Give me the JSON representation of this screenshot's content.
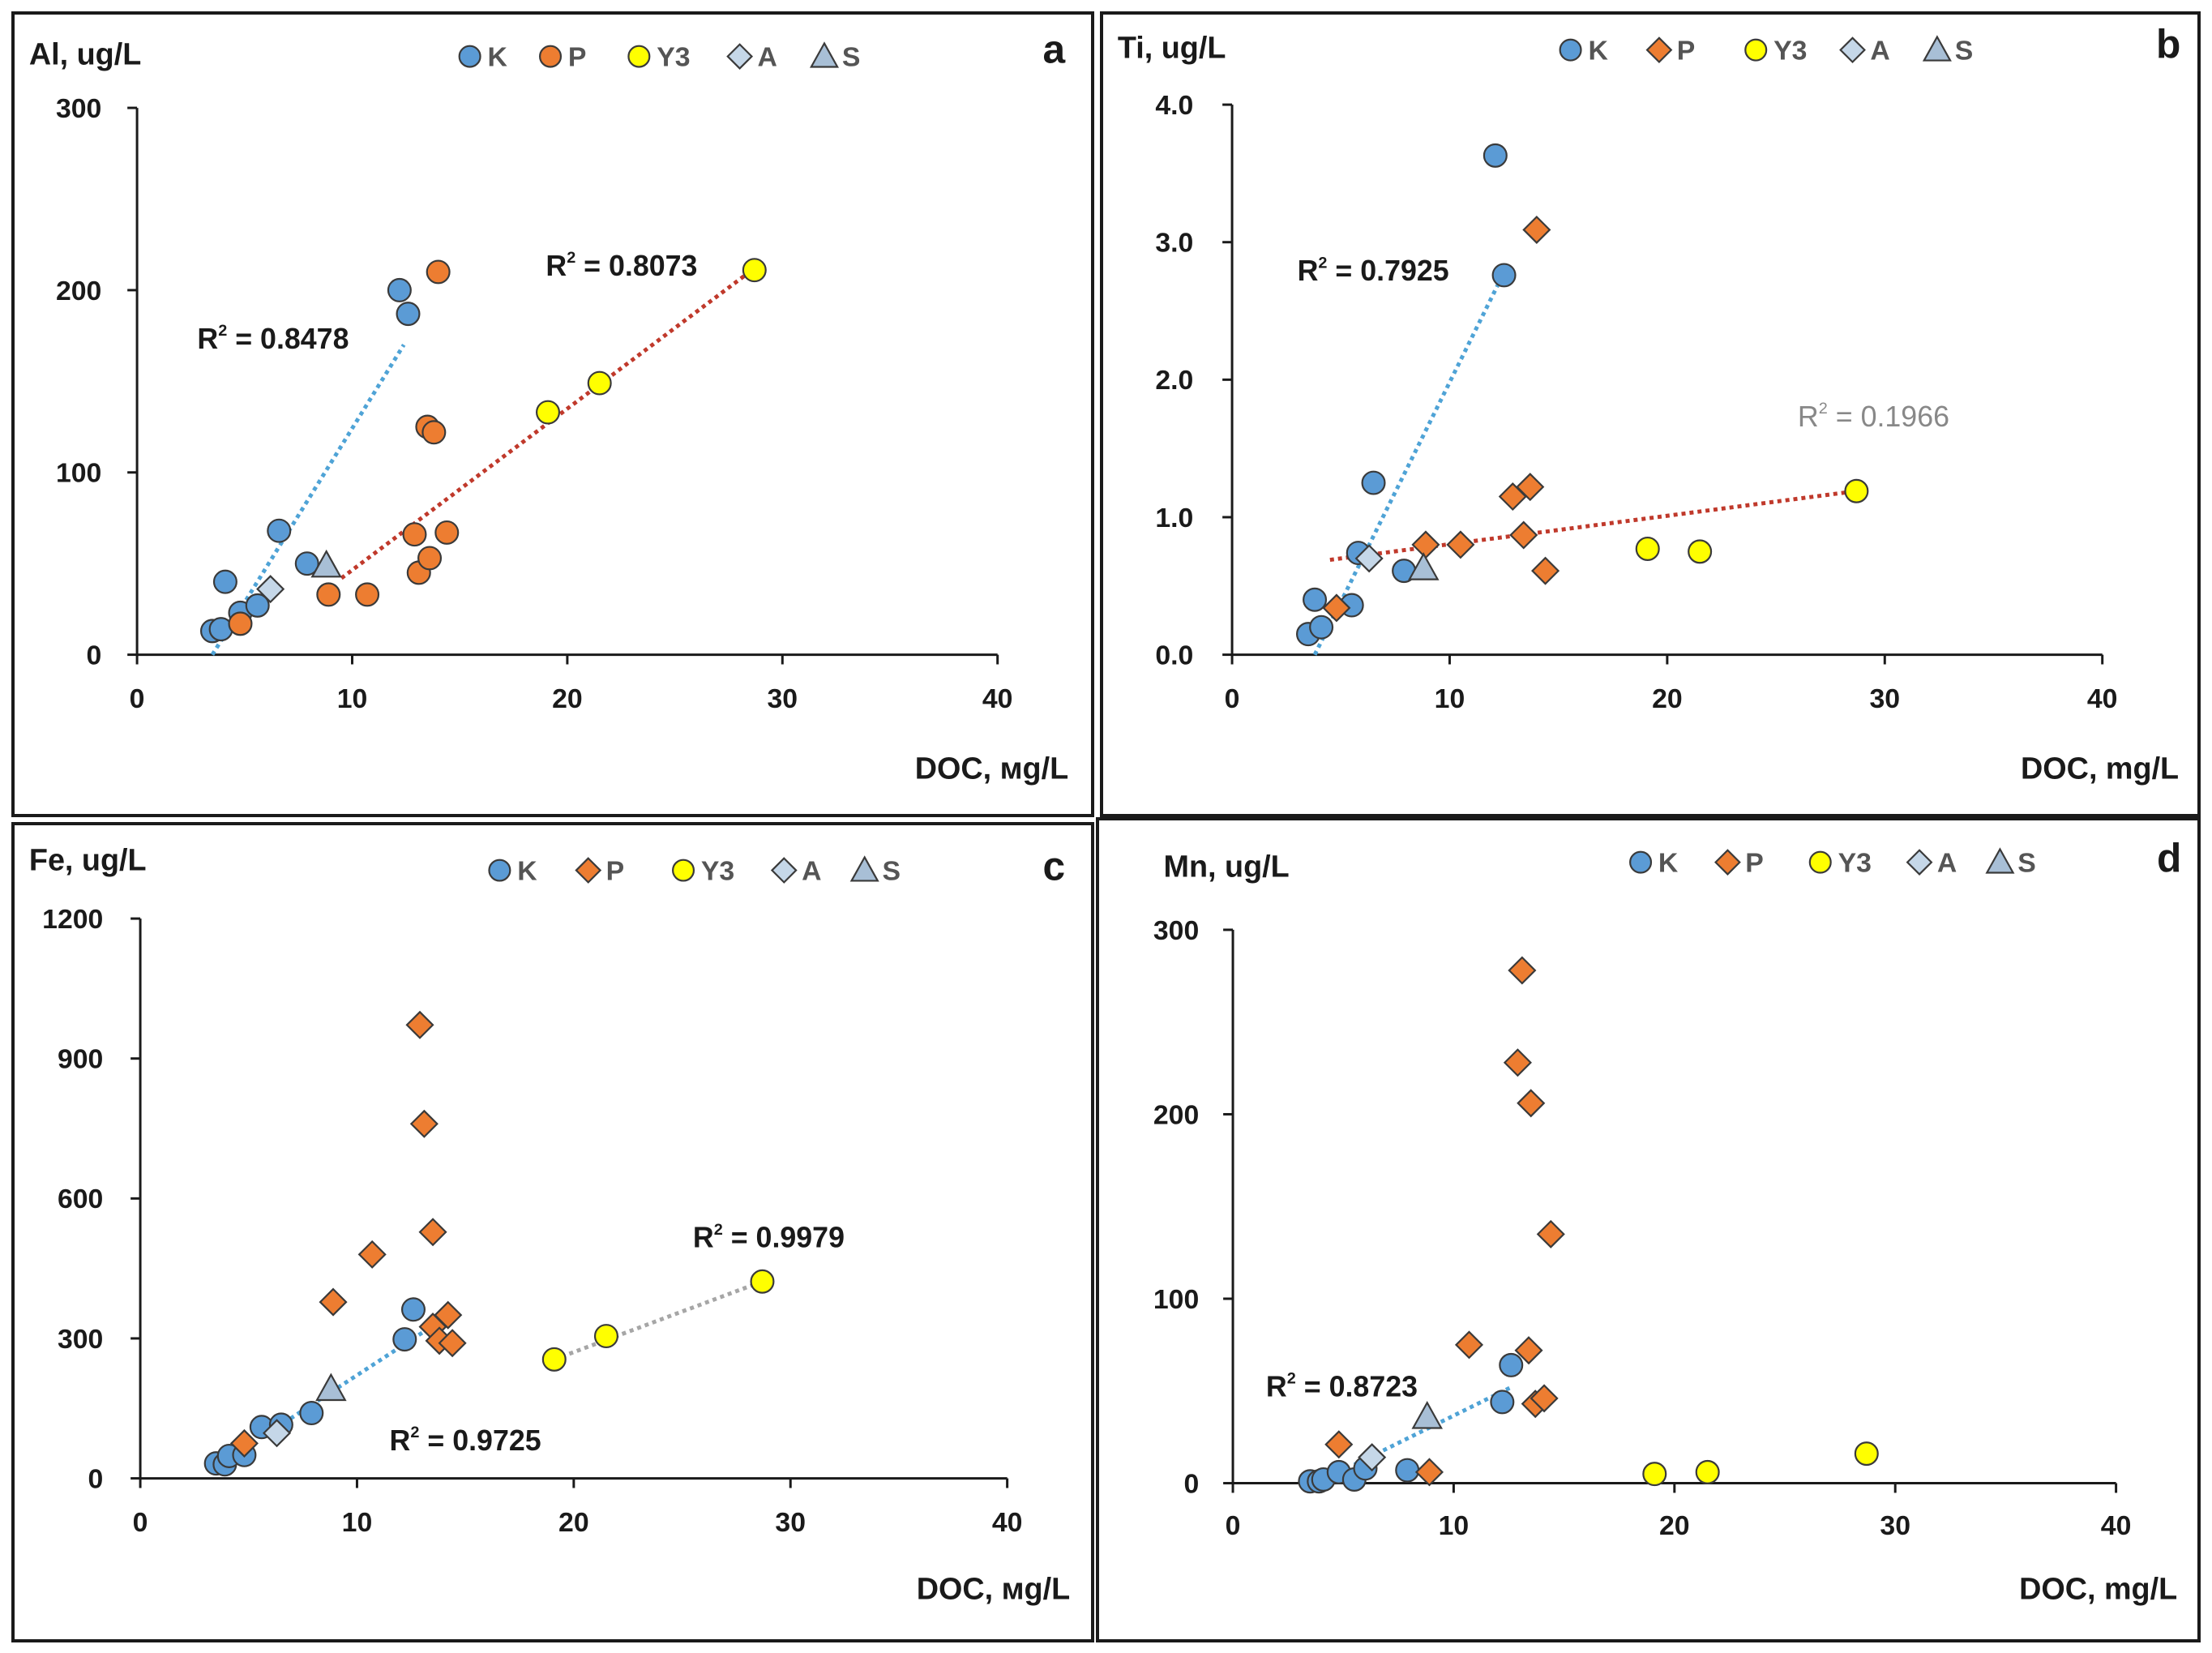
{
  "colors": {
    "K": "#5b9bd5",
    "P": "#ed7d31",
    "Y3": "#ffff00",
    "A": "#c5d7e8",
    "S": "#a8bfd6",
    "outline": "#3a3a3a",
    "trend_blue": "#4fa3d6",
    "trend_red": "#c0392b",
    "trend_gray": "#a6a6a6",
    "r2_gray": "#888888"
  },
  "chart_data": [
    {
      "id": "a",
      "type": "scatter",
      "panel_letter": "a",
      "ylabel": "Al, ug/L",
      "xlabel": "DOC, мg/L",
      "xlim": [
        0,
        40
      ],
      "ylim": [
        0,
        300
      ],
      "xticks": [
        "0",
        "10",
        "20",
        "30",
        "40"
      ],
      "yticks": [
        "0",
        "100",
        "200",
        "300"
      ],
      "legend": [
        {
          "label": "K",
          "marker": "circle",
          "color": "#5b9bd5"
        },
        {
          "label": "P",
          "marker": "circle",
          "color": "#ed7d31"
        },
        {
          "label": "Y3",
          "marker": "circle",
          "color": "#ffff00"
        },
        {
          "label": "A",
          "marker": "diamond",
          "color": "#c5d7e8"
        },
        {
          "label": "S",
          "marker": "triangle",
          "color": "#a8bfd6"
        }
      ],
      "series": [
        {
          "name": "K",
          "marker": "circle",
          "color": "#5b9bd5",
          "points": [
            [
              3.5,
              13
            ],
            [
              3.9,
              14
            ],
            [
              4.1,
              40
            ],
            [
              4.8,
              23
            ],
            [
              5.6,
              27
            ],
            [
              6.6,
              68
            ],
            [
              7.9,
              50
            ],
            [
              12.2,
              200
            ],
            [
              12.6,
              187
            ]
          ]
        },
        {
          "name": "P",
          "marker": "circle",
          "color": "#ed7d31",
          "points": [
            [
              4.8,
              17
            ],
            [
              8.9,
              33
            ],
            [
              10.7,
              33
            ],
            [
              12.9,
              66
            ],
            [
              13.1,
              45
            ],
            [
              13.5,
              125
            ],
            [
              13.6,
              53
            ],
            [
              13.8,
              122
            ],
            [
              14.0,
              210
            ],
            [
              14.4,
              67
            ]
          ]
        },
        {
          "name": "Y3",
          "marker": "circle",
          "color": "#ffff00",
          "points": [
            [
              19.1,
              133
            ],
            [
              21.5,
              149
            ],
            [
              28.7,
              211
            ]
          ]
        },
        {
          "name": "A",
          "marker": "diamond",
          "color": "#c5d7e8",
          "points": [
            [
              6.2,
              36
            ]
          ]
        },
        {
          "name": "S",
          "marker": "triangle",
          "color": "#a8bfd6",
          "points": [
            [
              8.8,
              49
            ]
          ]
        }
      ],
      "trendlines": [
        {
          "color": "#4fa3d6",
          "from": [
            3.5,
            0
          ],
          "to": [
            12.4,
            170
          ],
          "r2": "R² = 0.8478",
          "r2_base": "R",
          "r2_value": " = 0.8478",
          "label_at": [
            2.8,
            168
          ],
          "label_color": "#1a1a1a"
        },
        {
          "color": "#c0392b",
          "from": [
            9.5,
            42
          ],
          "to": [
            28.7,
            212
          ],
          "r2": "R² = 0.8073",
          "r2_base": "R",
          "r2_value": " = 0.8073",
          "label_at": [
            19.0,
            208
          ],
          "label_color": "#1a1a1a"
        }
      ]
    },
    {
      "id": "b",
      "type": "scatter",
      "panel_letter": "b",
      "ylabel": "Ti, ug/L",
      "xlabel": "DOC, mg/L",
      "xlim": [
        0,
        40
      ],
      "ylim": [
        0,
        4
      ],
      "xticks": [
        "0",
        "10",
        "20",
        "30",
        "40"
      ],
      "yticks": [
        "0.0",
        "1.0",
        "2.0",
        "3.0",
        "4.0"
      ],
      "legend": [
        {
          "label": "K",
          "marker": "circle",
          "color": "#5b9bd5"
        },
        {
          "label": "P",
          "marker": "diamond",
          "color": "#ed7d31"
        },
        {
          "label": "Y3",
          "marker": "circle",
          "color": "#ffff00"
        },
        {
          "label": "A",
          "marker": "diamond",
          "color": "#c5d7e8"
        },
        {
          "label": "S",
          "marker": "triangle",
          "color": "#a8bfd6"
        }
      ],
      "series": [
        {
          "name": "K",
          "marker": "circle",
          "color": "#5b9bd5",
          "points": [
            [
              3.5,
              0.15
            ],
            [
              3.8,
              0.4
            ],
            [
              4.1,
              0.2
            ],
            [
              5.5,
              0.36
            ],
            [
              5.8,
              0.74
            ],
            [
              6.5,
              1.25
            ],
            [
              7.9,
              0.61
            ],
            [
              12.1,
              3.63
            ],
            [
              12.5,
              2.76
            ]
          ]
        },
        {
          "name": "P",
          "marker": "diamond",
          "color": "#ed7d31",
          "points": [
            [
              4.8,
              0.34
            ],
            [
              8.9,
              0.8
            ],
            [
              10.5,
              0.8
            ],
            [
              12.9,
              1.15
            ],
            [
              13.4,
              0.87
            ],
            [
              13.7,
              1.22
            ],
            [
              14.0,
              3.09
            ],
            [
              14.4,
              0.61
            ]
          ]
        },
        {
          "name": "Y3",
          "marker": "circle",
          "color": "#ffff00",
          "points": [
            [
              19.1,
              0.77
            ],
            [
              21.5,
              0.75
            ],
            [
              28.7,
              1.19
            ]
          ]
        },
        {
          "name": "A",
          "marker": "diamond",
          "color": "#c5d7e8",
          "points": [
            [
              6.3,
              0.7
            ]
          ]
        },
        {
          "name": "S",
          "marker": "triangle",
          "color": "#a8bfd6",
          "points": [
            [
              8.8,
              0.63
            ]
          ]
        }
      ],
      "trendlines": [
        {
          "color": "#4fa3d6",
          "from": [
            3.8,
            0
          ],
          "to": [
            12.5,
            2.78
          ],
          "r2": "R² = 0.7925",
          "r2_base": "R",
          "r2_value": " = 0.7925",
          "label_at": [
            3.0,
            2.72
          ],
          "label_color": "#1a1a1a"
        },
        {
          "color": "#c0392b",
          "from": [
            4.5,
            0.69
          ],
          "to": [
            28.7,
            1.19
          ],
          "r2": "R² = 0.1966",
          "r2_base": "R",
          "r2_value": " = 0.1966",
          "label_at": [
            26.0,
            1.66
          ],
          "label_color": "#888888"
        }
      ]
    },
    {
      "id": "c",
      "type": "scatter",
      "panel_letter": "c",
      "ylabel": "Fe, ug/L",
      "xlabel": "DOC, мg/L",
      "xlim": [
        0,
        40
      ],
      "ylim": [
        0,
        1200
      ],
      "xticks": [
        "0",
        "10",
        "20",
        "30",
        "40"
      ],
      "yticks": [
        "0",
        "300",
        "600",
        "900",
        "1200"
      ],
      "legend": [
        {
          "label": "K",
          "marker": "circle",
          "color": "#5b9bd5"
        },
        {
          "label": "P",
          "marker": "diamond",
          "color": "#ed7d31"
        },
        {
          "label": "Y3",
          "marker": "circle",
          "color": "#ffff00"
        },
        {
          "label": "A",
          "marker": "diamond",
          "color": "#c5d7e8"
        },
        {
          "label": "S",
          "marker": "triangle",
          "color": "#a8bfd6"
        }
      ],
      "series": [
        {
          "name": "K",
          "marker": "circle",
          "color": "#5b9bd5",
          "points": [
            [
              3.5,
              32
            ],
            [
              3.9,
              30
            ],
            [
              4.1,
              48
            ],
            [
              4.8,
              50
            ],
            [
              5.6,
              110
            ],
            [
              6.5,
              115
            ],
            [
              7.9,
              140
            ],
            [
              12.2,
              298
            ],
            [
              12.6,
              362
            ]
          ]
        },
        {
          "name": "P",
          "marker": "diamond",
          "color": "#ed7d31",
          "points": [
            [
              4.8,
              75
            ],
            [
              8.9,
              378
            ],
            [
              10.7,
              480
            ],
            [
              12.9,
              972
            ],
            [
              13.1,
              760
            ],
            [
              13.5,
              528
            ],
            [
              13.5,
              325
            ],
            [
              13.8,
              295
            ],
            [
              14.2,
              350
            ],
            [
              14.4,
              290
            ]
          ]
        },
        {
          "name": "Y3",
          "marker": "circle",
          "color": "#ffff00",
          "points": [
            [
              19.1,
              255
            ],
            [
              21.5,
              305
            ],
            [
              28.7,
              422
            ]
          ]
        },
        {
          "name": "A",
          "marker": "diamond",
          "color": "#c5d7e8",
          "points": [
            [
              6.3,
              97
            ]
          ]
        },
        {
          "name": "S",
          "marker": "triangle",
          "color": "#a8bfd6",
          "points": [
            [
              8.8,
              192
            ]
          ]
        }
      ],
      "trendlines": [
        {
          "color": "#4fa3d6",
          "from": [
            6.0,
            100
          ],
          "to": [
            13.2,
            318
          ],
          "r2": "R² = 0.9725",
          "r2_base": "R",
          "r2_value": " = 0.9725",
          "label_at": [
            11.5,
            60
          ],
          "label_color": "#1a1a1a"
        },
        {
          "color": "#a6a6a6",
          "from": [
            19.1,
            255
          ],
          "to": [
            28.7,
            422
          ],
          "r2": "R² = 0.9979",
          "r2_base": "R",
          "r2_value": " = 0.9979",
          "label_at": [
            25.5,
            495
          ],
          "label_color": "#1a1a1a"
        }
      ]
    },
    {
      "id": "d",
      "type": "scatter",
      "panel_letter": "d",
      "ylabel": "Mn, ug/L",
      "xlabel": "DOC, mg/L",
      "xlim": [
        0,
        40
      ],
      "ylim": [
        0,
        300
      ],
      "xticks": [
        "0",
        "10",
        "20",
        "30",
        "40"
      ],
      "yticks": [
        "0",
        "100",
        "200",
        "300"
      ],
      "legend": [
        {
          "label": "K",
          "marker": "circle",
          "color": "#5b9bd5"
        },
        {
          "label": "P",
          "marker": "diamond",
          "color": "#ed7d31"
        },
        {
          "label": "Y3",
          "marker": "circle",
          "color": "#ffff00"
        },
        {
          "label": "A",
          "marker": "diamond",
          "color": "#c5d7e8"
        },
        {
          "label": "S",
          "marker": "triangle",
          "color": "#a8bfd6"
        }
      ],
      "series": [
        {
          "name": "K",
          "marker": "circle",
          "color": "#5b9bd5",
          "points": [
            [
              3.5,
              1
            ],
            [
              3.9,
              1
            ],
            [
              4.1,
              2
            ],
            [
              4.8,
              6
            ],
            [
              5.5,
              2
            ],
            [
              6.0,
              8
            ],
            [
              7.9,
              7
            ],
            [
              12.2,
              44
            ],
            [
              12.6,
              64
            ]
          ]
        },
        {
          "name": "P",
          "marker": "diamond",
          "color": "#ed7d31",
          "points": [
            [
              4.8,
              21
            ],
            [
              8.9,
              6
            ],
            [
              10.7,
              75
            ],
            [
              12.9,
              228
            ],
            [
              13.1,
              278
            ],
            [
              13.4,
              72
            ],
            [
              13.5,
              206
            ],
            [
              13.7,
              43
            ],
            [
              14.1,
              46
            ],
            [
              14.4,
              135
            ]
          ]
        },
        {
          "name": "Y3",
          "marker": "circle",
          "color": "#ffff00",
          "points": [
            [
              19.1,
              5
            ],
            [
              21.5,
              6
            ],
            [
              28.7,
              16
            ]
          ]
        },
        {
          "name": "A",
          "marker": "diamond",
          "color": "#c5d7e8",
          "points": [
            [
              6.3,
              14
            ]
          ]
        },
        {
          "name": "S",
          "marker": "triangle",
          "color": "#a8bfd6",
          "points": [
            [
              8.8,
              36
            ]
          ]
        }
      ],
      "trendlines": [
        {
          "color": "#4fa3d6",
          "from": [
            5.5,
            10
          ],
          "to": [
            12.6,
            52
          ],
          "r2": "R² = 0.8723",
          "r2_base": "R",
          "r2_value": " = 0.8723",
          "label_at": [
            1.5,
            47
          ],
          "label_color": "#1a1a1a"
        }
      ]
    }
  ]
}
